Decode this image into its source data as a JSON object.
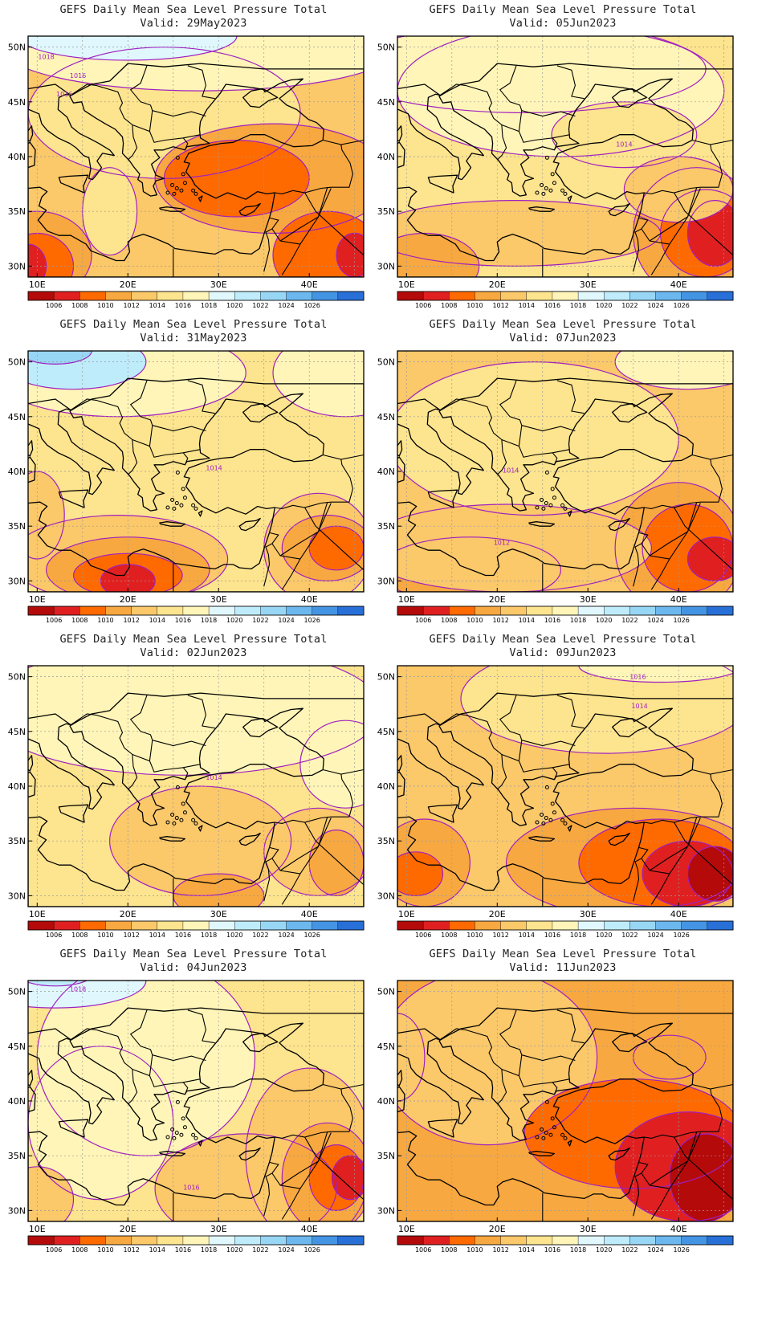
{
  "chart_data": [
    {
      "type": "heatmap",
      "title": "GEFS Daily Mean Sea Level Pressure Total",
      "subtitle": "Valid: 29May2023",
      "contour_labels": [
        "1018",
        "1016",
        "1016"
      ]
    },
    {
      "type": "heatmap",
      "title": "GEFS Daily Mean Sea Level Pressure Total",
      "subtitle": "Valid: 05Jun2023",
      "contour_labels": [
        "1014"
      ]
    },
    {
      "type": "heatmap",
      "title": "GEFS Daily Mean Sea Level Pressure Total",
      "subtitle": "Valid: 31May2023",
      "contour_labels": [
        "1014"
      ]
    },
    {
      "type": "heatmap",
      "title": "GEFS Daily Mean Sea Level Pressure Total",
      "subtitle": "Valid: 07Jun2023",
      "contour_labels": [
        "1014",
        "1012"
      ]
    },
    {
      "type": "heatmap",
      "title": "GEFS Daily Mean Sea Level Pressure Total",
      "subtitle": "Valid: 02Jun2023",
      "contour_labels": [
        "1014"
      ]
    },
    {
      "type": "heatmap",
      "title": "GEFS Daily Mean Sea Level Pressure Total",
      "subtitle": "Valid: 09Jun2023",
      "contour_labels": [
        "1016",
        "1014"
      ]
    },
    {
      "type": "heatmap",
      "title": "GEFS Daily Mean Sea Level Pressure Total",
      "subtitle": "Valid: 04Jun2023",
      "contour_labels": [
        "1018",
        "1016"
      ]
    },
    {
      "type": "heatmap",
      "title": "GEFS Daily Mean Sea Level Pressure Total",
      "subtitle": "Valid: 11Jun2023",
      "contour_labels": []
    }
  ],
  "axes": {
    "x_ticks": [
      "10E",
      "20E",
      "30E",
      "40E"
    ],
    "y_ticks": [
      "50N",
      "45N",
      "40N",
      "35N",
      "30N"
    ],
    "lon_range": [
      9,
      46
    ],
    "lat_range": [
      29,
      51
    ]
  },
  "colorbar": {
    "levels": [
      "1006",
      "1008",
      "1010",
      "1012",
      "1014",
      "1016",
      "1018",
      "1020",
      "1022",
      "1024",
      "1026"
    ],
    "colors": [
      "#b40a0a",
      "#e02020",
      "#ff6a00",
      "#f8a840",
      "#fbc86a",
      "#fde48e",
      "#fff5b8",
      "#e0f8fd",
      "#bfecfb",
      "#98d6f6",
      "#6cb8ee",
      "#4494e4",
      "#2870d8"
    ]
  },
  "colors": {
    "contour_line": "#a020c0",
    "coast_line": "#000000",
    "grid_line": "#999999"
  }
}
